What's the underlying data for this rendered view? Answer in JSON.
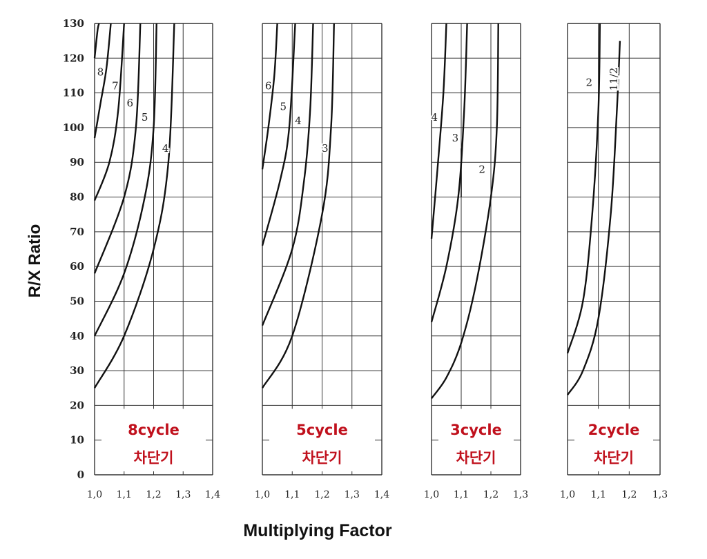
{
  "chart_data": {
    "type": "line",
    "ylabel": "R/X Ratio",
    "xlabel": "Multiplying Factor",
    "ylim": [
      0,
      130
    ],
    "y_ticks": [
      "0",
      "10",
      "20",
      "30",
      "40",
      "50",
      "60",
      "70",
      "80",
      "90",
      "100",
      "110",
      "120",
      "130"
    ],
    "grid": true,
    "panels": [
      {
        "caption": [
          "8cycle",
          "차단기"
        ],
        "xlim": [
          1.0,
          1.4
        ],
        "x_ticks": [
          "1,0",
          "1,1",
          "1,2",
          "1,3",
          "1,4"
        ],
        "series": [
          {
            "name": "8",
            "points": [
              [
                1.0,
                120
              ],
              [
                1.01,
                128
              ],
              [
                1.015,
                130
              ]
            ]
          },
          {
            "name": "7",
            "points": [
              [
                1.0,
                97
              ],
              [
                1.02,
                107
              ],
              [
                1.04,
                117
              ],
              [
                1.055,
                130
              ]
            ]
          },
          {
            "name": "6",
            "points": [
              [
                1.0,
                79
              ],
              [
                1.05,
                90
              ],
              [
                1.08,
                105
              ],
              [
                1.1,
                130
              ]
            ]
          },
          {
            "name": "5",
            "points": [
              [
                1.0,
                58
              ],
              [
                1.1,
                80
              ],
              [
                1.14,
                100
              ],
              [
                1.155,
                130
              ]
            ]
          },
          {
            "name": "",
            "points": [
              [
                1.0,
                40
              ],
              [
                1.1,
                58
              ],
              [
                1.17,
                80
              ],
              [
                1.2,
                100
              ],
              [
                1.21,
                130
              ]
            ]
          },
          {
            "name": "4",
            "points": [
              [
                1.0,
                25
              ],
              [
                1.1,
                40
              ],
              [
                1.2,
                65
              ],
              [
                1.25,
                90
              ],
              [
                1.27,
                130
              ]
            ]
          }
        ],
        "labels": [
          {
            "text": "8",
            "x": 1.02,
            "y": 116
          },
          {
            "text": "7",
            "x": 1.07,
            "y": 112
          },
          {
            "text": "6",
            "x": 1.12,
            "y": 107
          },
          {
            "text": "5",
            "x": 1.17,
            "y": 103
          },
          {
            "text": "4",
            "x": 1.24,
            "y": 94
          }
        ]
      },
      {
        "caption": [
          "5cycle",
          "차단기"
        ],
        "xlim": [
          1.0,
          1.4
        ],
        "x_ticks": [
          "1,0",
          "1,1",
          "1,2",
          "1,3",
          "1,4"
        ],
        "series": [
          {
            "name": "6",
            "points": [
              [
                1.0,
                88
              ],
              [
                1.02,
                100
              ],
              [
                1.04,
                115
              ],
              [
                1.05,
                130
              ]
            ]
          },
          {
            "name": "5",
            "points": [
              [
                1.0,
                66
              ],
              [
                1.06,
                85
              ],
              [
                1.09,
                100
              ],
              [
                1.11,
                130
              ]
            ]
          },
          {
            "name": "4",
            "points": [
              [
                1.0,
                43
              ],
              [
                1.1,
                65
              ],
              [
                1.14,
                85
              ],
              [
                1.16,
                105
              ],
              [
                1.17,
                130
              ]
            ]
          },
          {
            "name": "3",
            "points": [
              [
                1.0,
                25
              ],
              [
                1.1,
                40
              ],
              [
                1.2,
                75
              ],
              [
                1.23,
                100
              ],
              [
                1.24,
                130
              ]
            ]
          }
        ],
        "labels": [
          {
            "text": "6",
            "x": 1.02,
            "y": 112
          },
          {
            "text": "5",
            "x": 1.07,
            "y": 106
          },
          {
            "text": "4",
            "x": 1.12,
            "y": 102
          },
          {
            "text": "3",
            "x": 1.21,
            "y": 94
          }
        ]
      },
      {
        "caption": [
          "3cycle",
          "차단기"
        ],
        "xlim": [
          1.0,
          1.3
        ],
        "x_ticks": [
          "1,0",
          "1,1",
          "1,2",
          "1,3"
        ],
        "series": [
          {
            "name": "4",
            "points": [
              [
                1.0,
                68
              ],
              [
                1.02,
                88
              ],
              [
                1.04,
                110
              ],
              [
                1.05,
                130
              ]
            ]
          },
          {
            "name": "",
            "points": [
              [
                1.0,
                44
              ],
              [
                1.05,
                60
              ],
              [
                1.09,
                80
              ],
              [
                1.11,
                105
              ],
              [
                1.12,
                130
              ]
            ]
          },
          {
            "name": "2",
            "points": [
              [
                1.0,
                22
              ],
              [
                1.05,
                28
              ],
              [
                1.1,
                38
              ],
              [
                1.15,
                55
              ],
              [
                1.2,
                80
              ],
              [
                1.22,
                100
              ],
              [
                1.225,
                130
              ]
            ]
          }
        ],
        "labels": [
          {
            "text": "4",
            "x": 1.01,
            "y": 103
          },
          {
            "text": "3",
            "x": 1.08,
            "y": 97
          },
          {
            "text": "2",
            "x": 1.17,
            "y": 88
          }
        ],
        "extra_segments": [
          {
            "points": [
              [
                1.1,
                94
              ],
              [
                1.1,
                80
              ]
            ]
          }
        ]
      },
      {
        "caption": [
          "2cycle",
          "차단기"
        ],
        "xlim": [
          1.0,
          1.3
        ],
        "x_ticks": [
          "1,0",
          "1,1",
          "1,2",
          "1,3"
        ],
        "series": [
          {
            "name": "2",
            "points": [
              [
                1.0,
                35
              ],
              [
                1.05,
                50
              ],
              [
                1.08,
                75
              ],
              [
                1.1,
                105
              ],
              [
                1.105,
                130
              ]
            ]
          },
          {
            "name": "11/2",
            "points": [
              [
                1.0,
                23
              ],
              [
                1.05,
                30
              ],
              [
                1.1,
                45
              ],
              [
                1.14,
                75
              ],
              [
                1.16,
                105
              ],
              [
                1.17,
                125
              ]
            ]
          }
        ],
        "labels": [
          {
            "text": "2",
            "x": 1.07,
            "y": 113
          },
          {
            "text": "11/2",
            "x": 1.15,
            "y": 114
          }
        ]
      }
    ]
  }
}
